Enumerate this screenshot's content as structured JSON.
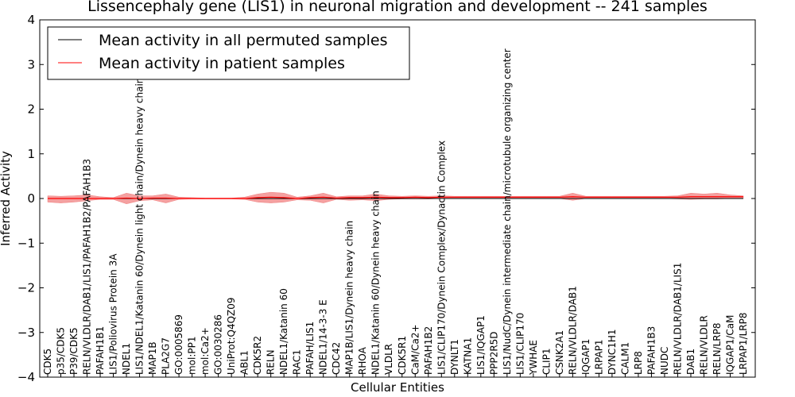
{
  "chart_data": {
    "type": "line",
    "title": "Lissencephaly gene (LIS1) in neuronal migration and development -- 241 samples",
    "xlabel": "Cellular Entities",
    "ylabel": "Inferred Activity",
    "ylim": [
      -4,
      4
    ],
    "yticks": [
      -4,
      -3,
      -2,
      -1,
      0,
      1,
      2,
      3,
      4
    ],
    "ytick_labels": [
      "−4",
      "−3",
      "−2",
      "−1",
      "0",
      "1",
      "2",
      "3",
      "4"
    ],
    "grid": false,
    "legend_position": "top-left",
    "categories": [
      "CDK5",
      "p35/CDK5",
      "P39/CDK5",
      "RELN/VLDLR/DAB1/LIS1/PAFAH1B2/PAFAH1B3",
      "PAFAH1B1",
      "LIS1/Poliovirus Protein 3A",
      "NDEL1",
      "LIS1/NDEL1/Katanin 60/Dynein light chain/Dynein heavy chain",
      "MAP1B",
      "PLA2G7",
      "GO:0005869",
      "mol:PP1",
      "mol:Ca2+",
      "GO:0030286",
      "UniProt:Q4QZ09",
      "ABL1",
      "CDK5R2",
      "RELN",
      "NDEL1/Katanin 60",
      "RAC1",
      "PAFAH/LIS1",
      "NDEL1/14-3-3 E",
      "CDC42",
      "MAP1B/LIS1/Dynein heavy chain",
      "RHOA",
      "NDEL1/Katanin 60/Dynein heavy chain",
      "VLDLR",
      "CDK5R1",
      "CaM/Ca2+",
      "PAFAH1B2",
      "LIS1/CLIP170/Dynein Complex/Dynactin Complex",
      "DYNLT1",
      "KATNA1",
      "LIS1/IQGAP1",
      "PPP2R5D",
      "LIS1/NudC/Dynein intermediate chain/microtubule organizing center",
      "LIS1/CLIP170",
      "YWHAE",
      "CLIP1",
      "CSNK2A1",
      "RELN/VLDLR/DAB1",
      "IQGAP1",
      "LRPAP1",
      "DYNC1H1",
      "CALM1",
      "LRP8",
      "PAFAH1B3",
      "NUDC",
      "RELN/VLDLR/DAB1/LIS1",
      "DAB1",
      "RELN/VLDLR",
      "RELN/LRP8",
      "IQGAP1/CaM",
      "LRPAP1/LRP8"
    ],
    "series": [
      {
        "name": "Mean activity in all permuted samples",
        "color": "#000000",
        "values": [
          0.0,
          0.0,
          0.0,
          0.0,
          0.0,
          0.0,
          0.0,
          0.0,
          0.0,
          0.0,
          0.0,
          0.0,
          0.0,
          0.0,
          0.0,
          0.0,
          0.0,
          0.0,
          0.0,
          0.0,
          0.0,
          0.0,
          0.0,
          0.0,
          0.0,
          0.0,
          0.0,
          0.0,
          0.0,
          0.0,
          0.0,
          0.0,
          0.0,
          0.0,
          0.0,
          0.0,
          0.0,
          0.0,
          0.0,
          0.0,
          0.0,
          0.0,
          0.0,
          0.0,
          0.0,
          0.0,
          0.0,
          0.0,
          0.0,
          0.0,
          0.0,
          0.0,
          0.0,
          0.0
        ]
      },
      {
        "name": "Mean activity in patient samples",
        "color": "#ff0000",
        "fill_color": "#f08080",
        "values": [
          0.0,
          0.0,
          0.0,
          0.0,
          0.0,
          0.0,
          0.01,
          0.0,
          0.01,
          0.01,
          0.0,
          0.0,
          0.0,
          0.0,
          0.0,
          0.0,
          0.02,
          0.03,
          0.02,
          0.0,
          0.02,
          0.03,
          0.01,
          0.02,
          0.02,
          0.03,
          0.02,
          0.02,
          0.03,
          0.02,
          0.03,
          0.03,
          0.03,
          0.03,
          0.03,
          0.03,
          0.03,
          0.03,
          0.03,
          0.03,
          0.04,
          0.03,
          0.03,
          0.03,
          0.03,
          0.03,
          0.03,
          0.03,
          0.03,
          0.04,
          0.04,
          0.04,
          0.04,
          0.04
        ],
        "lower": [
          -0.08,
          -0.1,
          -0.08,
          -0.05,
          -0.02,
          -0.02,
          -0.12,
          -0.05,
          -0.03,
          -0.1,
          -0.02,
          -0.01,
          -0.01,
          -0.01,
          -0.01,
          -0.02,
          -0.08,
          -0.1,
          -0.08,
          -0.03,
          -0.04,
          -0.1,
          -0.02,
          -0.04,
          -0.03,
          -0.05,
          -0.02,
          -0.01,
          -0.01,
          -0.01,
          0.0,
          0.0,
          0.0,
          0.0,
          0.0,
          0.0,
          0.0,
          0.0,
          0.0,
          0.0,
          -0.04,
          0.0,
          0.0,
          0.0,
          0.0,
          0.0,
          0.0,
          0.0,
          -0.01,
          -0.02,
          -0.01,
          -0.01,
          0.0,
          0.0
        ],
        "upper": [
          0.06,
          0.05,
          0.06,
          0.08,
          0.04,
          0.02,
          0.12,
          0.06,
          0.06,
          0.1,
          0.03,
          0.02,
          0.01,
          0.01,
          0.01,
          0.03,
          0.1,
          0.14,
          0.12,
          0.03,
          0.06,
          0.12,
          0.04,
          0.06,
          0.06,
          0.1,
          0.06,
          0.05,
          0.06,
          0.05,
          0.06,
          0.05,
          0.05,
          0.05,
          0.05,
          0.05,
          0.05,
          0.05,
          0.05,
          0.05,
          0.12,
          0.05,
          0.05,
          0.05,
          0.05,
          0.05,
          0.05,
          0.05,
          0.06,
          0.12,
          0.1,
          0.12,
          0.08,
          0.06
        ]
      }
    ]
  }
}
